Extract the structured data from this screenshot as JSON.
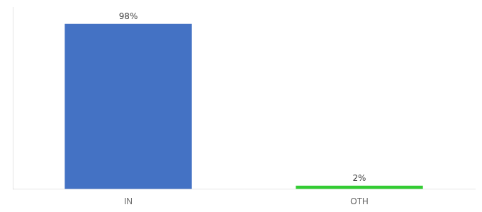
{
  "chart_data": {
    "type": "bar",
    "categories": [
      "IN",
      "OTH"
    ],
    "values": [
      98,
      2
    ],
    "value_labels": [
      "98%",
      "2%"
    ],
    "colors": [
      "#4472C4",
      "#33CC33"
    ],
    "ylim": [
      0,
      108
    ],
    "tick_labels": "x",
    "data_labels": true,
    "grid": false
  }
}
